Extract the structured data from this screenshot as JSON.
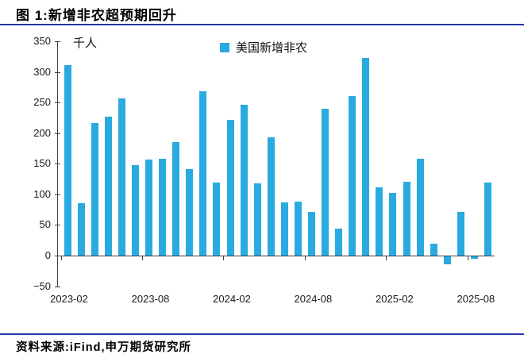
{
  "header": {
    "title": "图 1:新增非农超预期回升"
  },
  "footer": {
    "source_label": "资料来源:iFind,申万期货研究所"
  },
  "colors": {
    "bar_blue": "#29ABE2",
    "rule_blue": "#2135A6",
    "axis_gray": "#404040",
    "text_black": "#000000"
  },
  "chart_data": {
    "type": "bar",
    "title": "",
    "unit_label": "千人",
    "legend": [
      {
        "label": "美国新增非农",
        "color": "#29ABE2"
      }
    ],
    "legend_position": "top",
    "grid": false,
    "ylim": [
      -50,
      350
    ],
    "y_tick_step": 50,
    "x_tick_label_interval": 6,
    "x_axis_tick_labels": [
      "2023-02",
      "2023-08",
      "2024-02",
      "2024-08",
      "2025-02",
      "2025-08"
    ],
    "categories": [
      "2023-02",
      "2023-03",
      "2023-04",
      "2023-05",
      "2023-06",
      "2023-07",
      "2023-08",
      "2023-09",
      "2023-10",
      "2023-11",
      "2023-12",
      "2024-01",
      "2024-02",
      "2024-03",
      "2024-04",
      "2024-05",
      "2024-06",
      "2024-07",
      "2024-08",
      "2024-09",
      "2024-10",
      "2024-11",
      "2024-12",
      "2025-01",
      "2025-02",
      "2025-03",
      "2025-04",
      "2025-05",
      "2025-06",
      "2025-07",
      "2025-08",
      "2025-09"
    ],
    "series": [
      {
        "name": "美国新增非农",
        "values": [
          311,
          86,
          216,
          227,
          257,
          148,
          157,
          158,
          186,
          141,
          269,
          119,
          222,
          246,
          118,
          193,
          87,
          88,
          71,
          240,
          44,
          261,
          323,
          111,
          102,
          120,
          158,
          19,
          -13,
          72,
          -4,
          119
        ]
      }
    ]
  }
}
